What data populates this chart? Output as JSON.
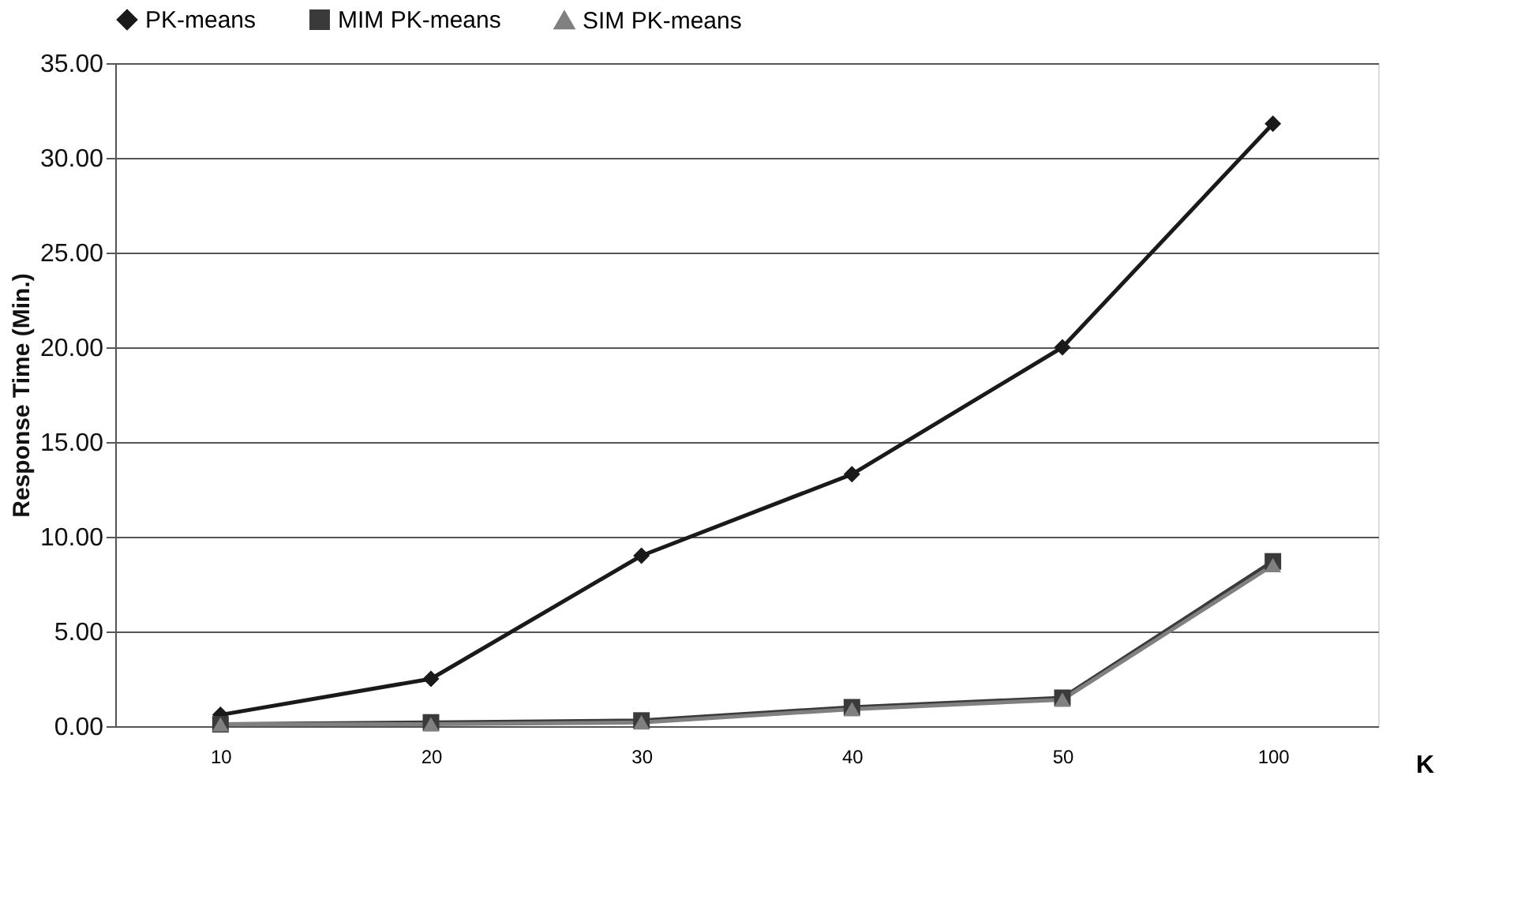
{
  "chart_data": {
    "type": "line",
    "xlabel": "K",
    "ylabel": "Response Time (Min.)",
    "categories": [
      "10",
      "20",
      "30",
      "40",
      "50",
      "100"
    ],
    "series": [
      {
        "name": "PK-means",
        "color": "#1a1a1a",
        "marker": "diamond",
        "values": [
          0.6,
          2.5,
          9.0,
          13.3,
          20.0,
          31.8
        ]
      },
      {
        "name": "MIM PK-means",
        "color": "#3a3a3a",
        "marker": "square",
        "values": [
          0.1,
          0.2,
          0.3,
          1.0,
          1.5,
          8.7
        ]
      },
      {
        "name": "SIM PK-means",
        "color": "#808080",
        "marker": "triangle",
        "values": [
          0.1,
          0.1,
          0.2,
          0.9,
          1.4,
          8.5
        ]
      }
    ],
    "ylim": [
      0,
      35
    ],
    "yticks": [
      {
        "value": 0,
        "label": "0.00"
      },
      {
        "value": 5,
        "label": "5.00"
      },
      {
        "value": 10,
        "label": "10.00"
      },
      {
        "value": 15,
        "label": "15.00"
      },
      {
        "value": 20,
        "label": "20.00"
      },
      {
        "value": 25,
        "label": "25.00"
      },
      {
        "value": 30,
        "label": "30.00"
      },
      {
        "value": 35,
        "label": "35.00"
      }
    ],
    "grid": "y",
    "legend": "top",
    "line_style": "solid"
  }
}
